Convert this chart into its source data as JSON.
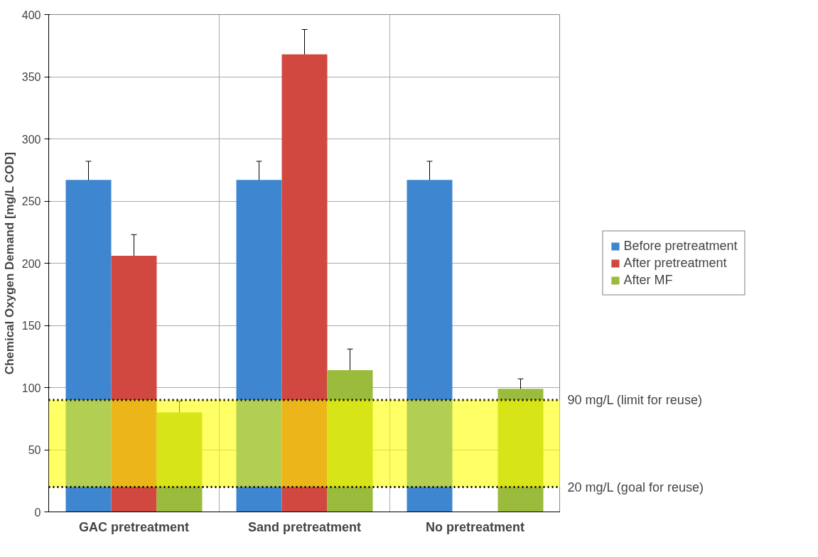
{
  "chart_data": {
    "type": "bar",
    "ylabel": "Chemical Oxygen Demand [mg/L COD]",
    "categories": [
      "GAC pretreatment",
      "Sand pretreatment",
      "No pretreatment"
    ],
    "series": [
      {
        "name": "Before pretreatment",
        "color": "#3f86d0",
        "values": [
          267,
          267,
          267
        ],
        "errors": [
          15,
          15,
          15
        ]
      },
      {
        "name": "After pretreatment",
        "color": "#d0483f",
        "values": [
          206,
          368,
          null
        ],
        "errors": [
          17,
          20,
          null
        ]
      },
      {
        "name": "After MF",
        "color": "#9bbb3c",
        "values": [
          80,
          114,
          99
        ],
        "errors": [
          9,
          17,
          8
        ]
      }
    ],
    "ylim": [
      0,
      400
    ],
    "yticks": [
      0,
      50,
      100,
      150,
      200,
      250,
      300,
      350,
      400
    ],
    "grid": true,
    "legend": "right",
    "bands": [
      {
        "axis": "y",
        "from": 20,
        "to": 90,
        "color": "#ffff00"
      }
    ],
    "ref_lines": [
      {
        "axis": "y",
        "value": 90,
        "label": "90 mg/L (limit for reuse)",
        "line_style": "dotted"
      },
      {
        "axis": "y",
        "value": 20,
        "label": "20 mg/L (goal for reuse)",
        "line_style": "dotted"
      }
    ]
  }
}
